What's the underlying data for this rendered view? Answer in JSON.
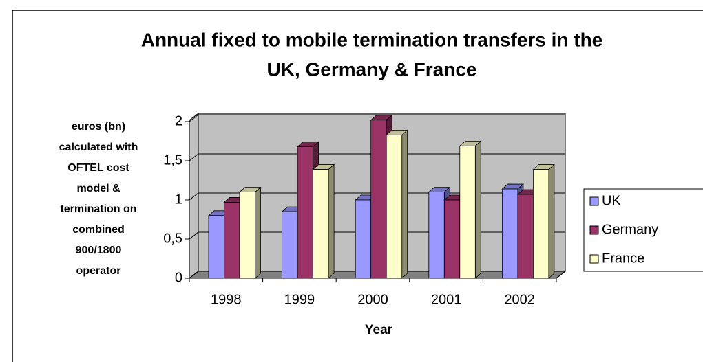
{
  "chart_data": {
    "type": "bar3d",
    "title": [
      "Annual fixed to mobile termination transfers in the",
      "UK, Germany & France"
    ],
    "xlabel": "Year",
    "ylabel": [
      "euros (bn)",
      "calculated with",
      "OFTEL cost",
      "model &",
      "termination on",
      "combined",
      "900/1800",
      "operator"
    ],
    "categories": [
      "1998",
      "1999",
      "2000",
      "2001",
      "2002"
    ],
    "series": [
      {
        "name": "UK",
        "color": "#9999ff",
        "values": [
          0.8,
          0.85,
          1.0,
          1.1,
          1.14
        ]
      },
      {
        "name": "Germany",
        "color": "#993366",
        "values": [
          0.97,
          1.68,
          2.02,
          1.0,
          1.07
        ]
      },
      {
        "name": "France",
        "color": "#ffffcc",
        "values": [
          1.1,
          1.39,
          1.83,
          1.69,
          1.39
        ]
      }
    ],
    "ylim": [
      0,
      2
    ],
    "yticks": [
      0,
      {
        "value": 0.5,
        "label": "0,5"
      },
      1,
      {
        "value": 1.5,
        "label": "1,5"
      },
      2
    ],
    "grid": true,
    "legend": "right"
  }
}
